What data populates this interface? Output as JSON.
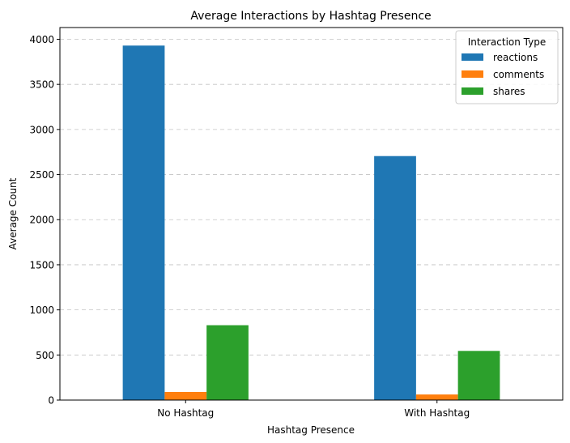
{
  "chart_data": {
    "type": "bar",
    "title": "Average Interactions by Hashtag Presence",
    "xlabel": "Hashtag Presence",
    "ylabel": "Average Count",
    "categories": [
      "No Hashtag",
      "With Hashtag"
    ],
    "series": [
      {
        "name": "reactions",
        "values": [
          3930,
          2705
        ],
        "color": "#1f77b4"
      },
      {
        "name": "comments",
        "values": [
          90,
          62
        ],
        "color": "#ff7f0e"
      },
      {
        "name": "shares",
        "values": [
          830,
          545
        ],
        "color": "#2ca02c"
      }
    ],
    "ylim": [
      0,
      4130
    ],
    "yticks": [
      0,
      500,
      1000,
      1500,
      2000,
      2500,
      3000,
      3500,
      4000
    ],
    "grid": "y-dashed",
    "legend": {
      "title": "Interaction Type",
      "placement": "top-right"
    }
  }
}
